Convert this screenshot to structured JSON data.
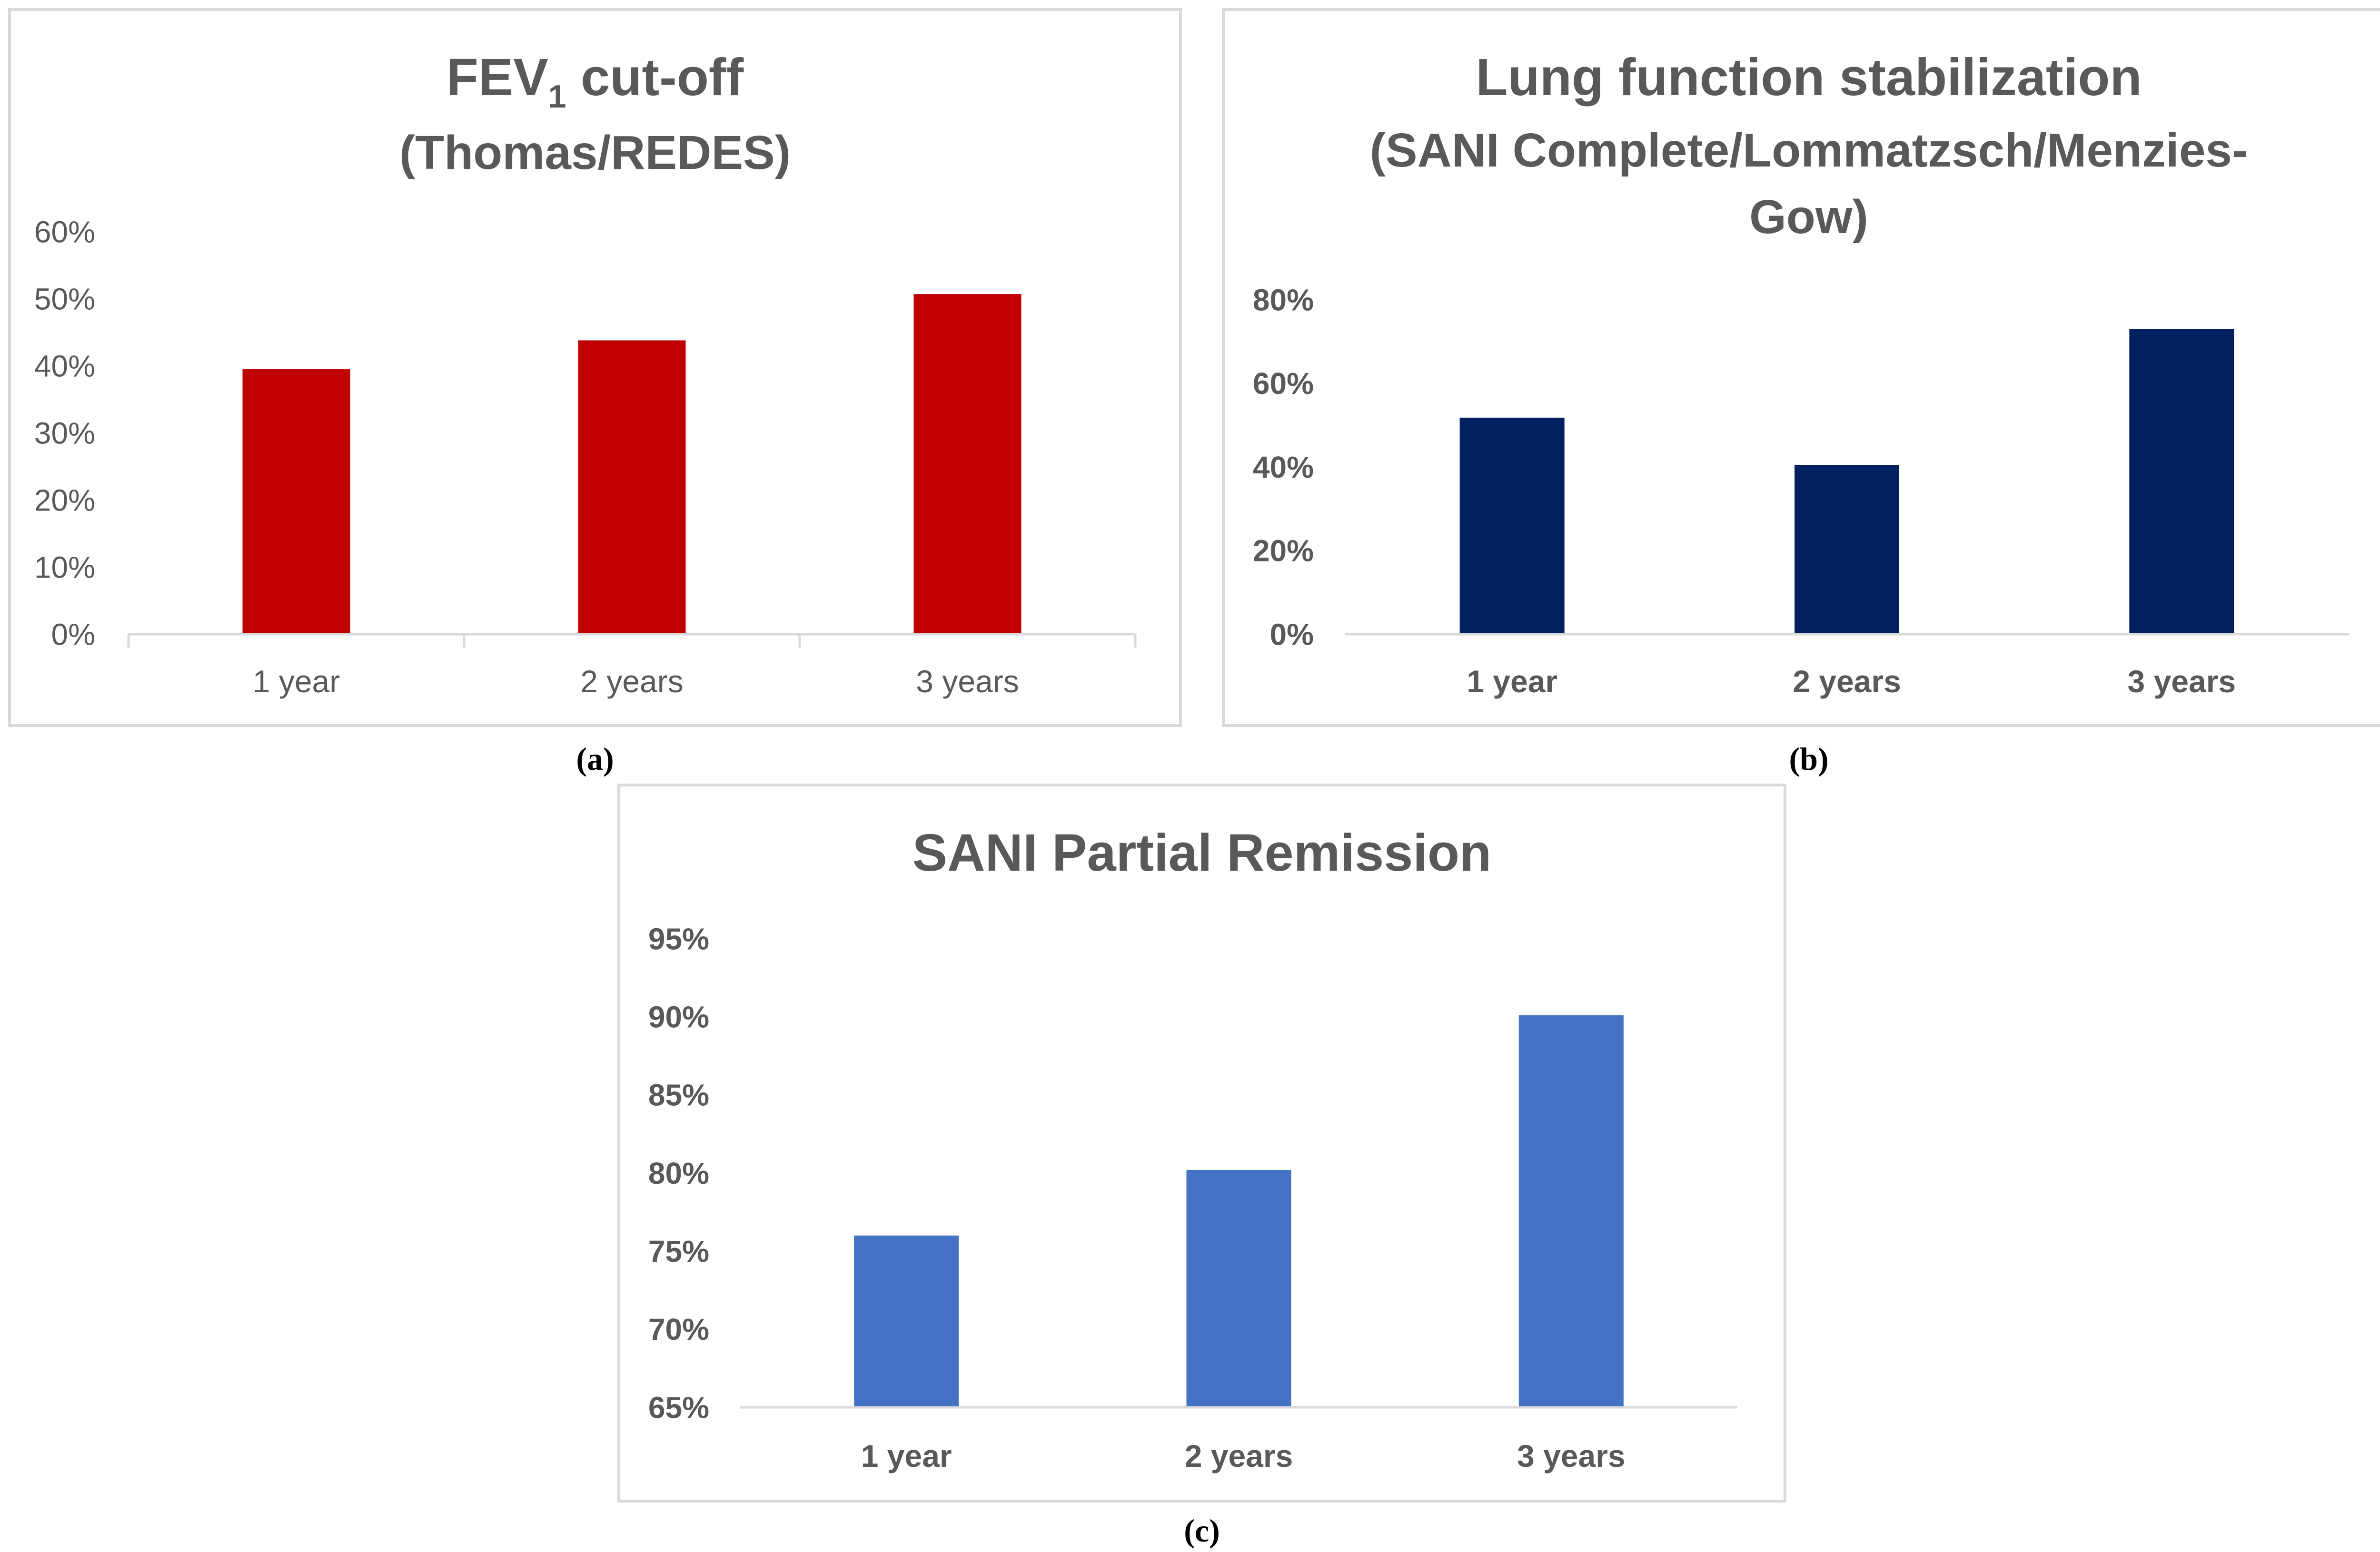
{
  "chart_data": [
    {
      "type": "bar",
      "title": "FEV",
      "title_subscript": "1",
      "title_suffix": " cut-off",
      "subtitle": [
        "(Thomas/REDES)"
      ],
      "categories": [
        "1 year",
        "2 years",
        "3 years"
      ],
      "values": [
        39.5,
        43.8,
        50.7
      ],
      "value_unit": "%",
      "ylim": [
        0,
        60
      ],
      "yticks": [
        0,
        10,
        20,
        30,
        40,
        50,
        60
      ],
      "ytick_labels": [
        "0%",
        "10%",
        "20%",
        "30%",
        "40%",
        "50%",
        "60%"
      ],
      "bar_color": "#c00000",
      "bold_ticks": false,
      "caption": "(a)"
    },
    {
      "type": "bar",
      "title": "Lung function stabilization",
      "subtitle": [
        "(SANI Complete/Lommatzsch/Menzies-",
        "Gow)"
      ],
      "categories": [
        "1 year",
        "2 years",
        "3 years"
      ],
      "values": [
        51.8,
        40.5,
        73.0
      ],
      "value_unit": "%",
      "ylim": [
        0,
        80
      ],
      "yticks": [
        0,
        20,
        40,
        60,
        80
      ],
      "ytick_labels": [
        "0%",
        "20%",
        "40%",
        "60%",
        "80%"
      ],
      "bar_color": "#002060",
      "bold_ticks": true,
      "caption": "(b)"
    },
    {
      "type": "bar",
      "title": "SANI Partial Remission",
      "subtitle": [],
      "categories": [
        "1 year",
        "2 years",
        "3 years"
      ],
      "values": [
        76.0,
        80.2,
        90.1
      ],
      "value_unit": "%",
      "ylim": [
        65,
        95
      ],
      "yticks": [
        65,
        70,
        75,
        80,
        85,
        90,
        95
      ],
      "ytick_labels": [
        "65%",
        "70%",
        "75%",
        "80%",
        "85%",
        "90%",
        "95%"
      ],
      "bar_color": "#4472c4",
      "bold_ticks": true,
      "caption": "(c)"
    }
  ]
}
